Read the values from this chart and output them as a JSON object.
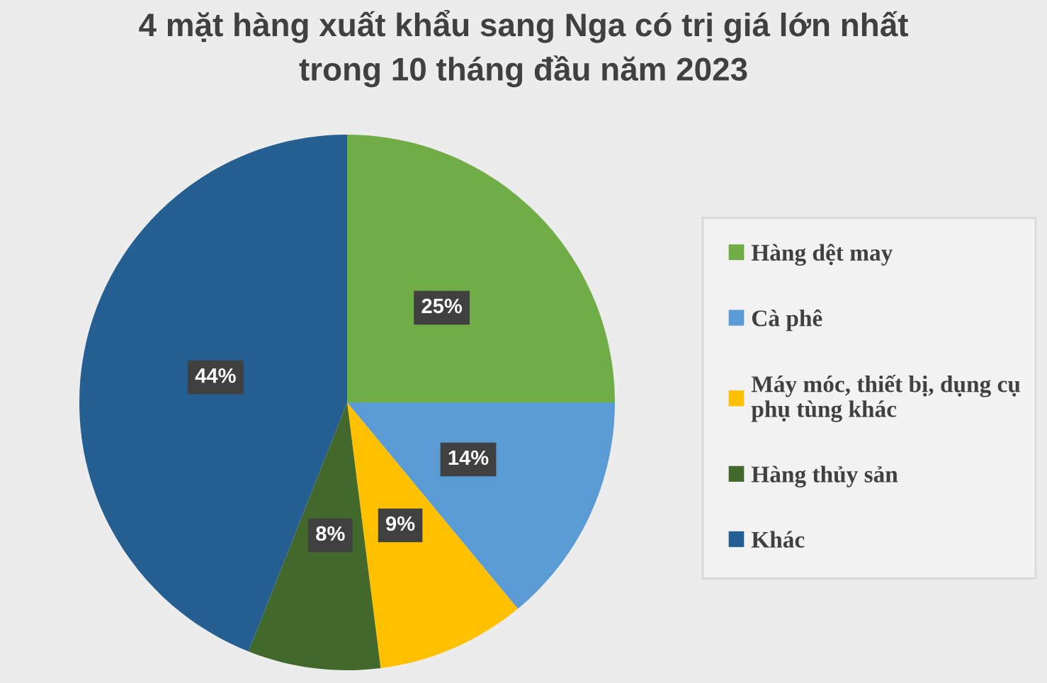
{
  "chart_data": {
    "type": "pie",
    "title": "4 mặt hàng xuất khẩu sang Nga có trị giá lớn nhất trong 10 tháng đầu năm 2023",
    "categories": [
      "Hàng dệt may",
      "Cà phê",
      "Máy móc, thiết bị, dụng cụ phụ tùng khác",
      "Hàng thủy sản",
      "Khác"
    ],
    "values": [
      25,
      14,
      9,
      8,
      44
    ],
    "colors": [
      "#70ad47",
      "#5b9bd5",
      "#ffc000",
      "#43682b",
      "#255e91"
    ],
    "value_labels": [
      "25%",
      "14%",
      "9%",
      "8%",
      "44%"
    ],
    "legend": "right"
  }
}
